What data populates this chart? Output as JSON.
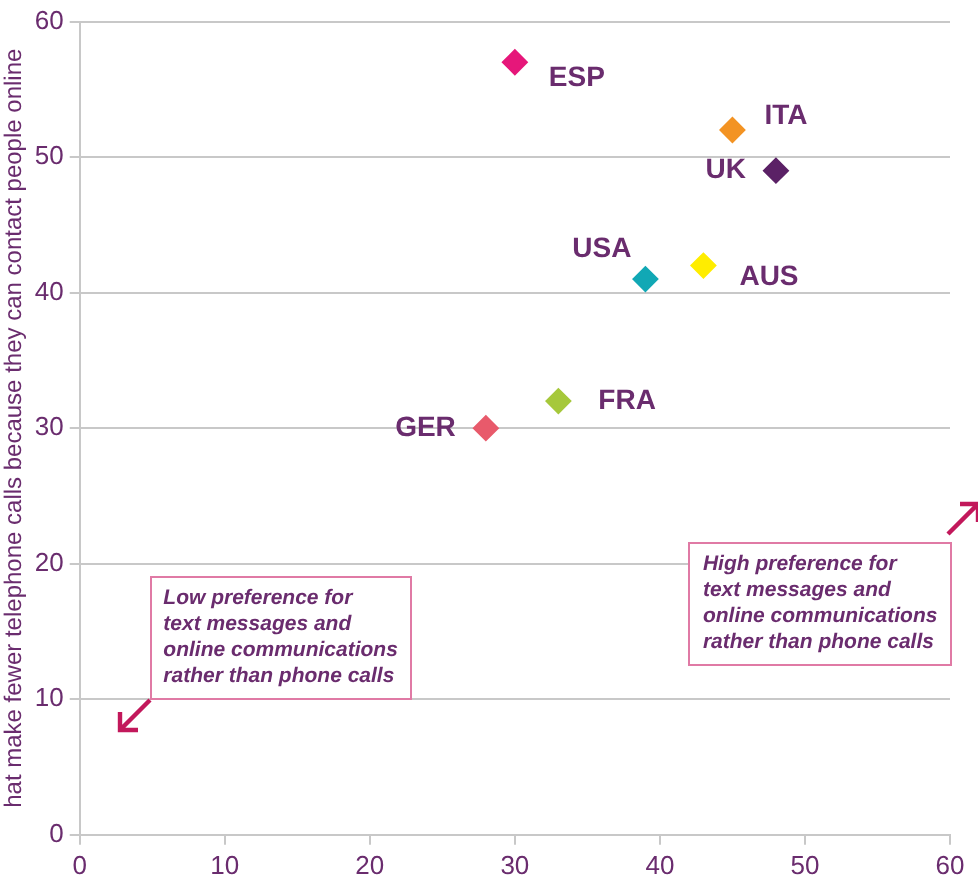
{
  "chart_data": {
    "type": "scatter",
    "ylabel": "hat make fewer telephone calls because they can contact people online",
    "xlim": [
      0,
      60
    ],
    "xticks": [
      0,
      10,
      20,
      30,
      40,
      50,
      60
    ],
    "ylim": [
      0,
      60
    ],
    "yticks": [
      0,
      10,
      20,
      30,
      40,
      50,
      60
    ],
    "grid": "y",
    "legend": false,
    "marker": "diamond",
    "x": [
      30,
      45,
      48,
      39,
      43,
      33,
      28
    ],
    "values": [
      57,
      52,
      49,
      41,
      42,
      32,
      30
    ],
    "colors": [
      "#e6177a",
      "#f39323",
      "#5b2166",
      "#11a8b5",
      "#ffed00",
      "#a6c83b",
      "#e85a6b"
    ],
    "annotations": [
      {
        "text": "ESP",
        "x": 30,
        "y": 57
      },
      {
        "text": "ITA",
        "x": 45,
        "y": 52
      },
      {
        "text": "UK",
        "x": 48,
        "y": 49
      },
      {
        "text": "USA",
        "x": 39,
        "y": 41
      },
      {
        "text": "AUS",
        "x": 43,
        "y": 42
      },
      {
        "text": "FRA",
        "x": 33,
        "y": 32
      },
      {
        "text": "GER",
        "x": 28,
        "y": 30
      },
      "High preference for\ntext messages and\nonline communications\nrather than phone calls",
      "Low preference for\ntext messages and\nonline communications\nrather than phone calls"
    ]
  }
}
